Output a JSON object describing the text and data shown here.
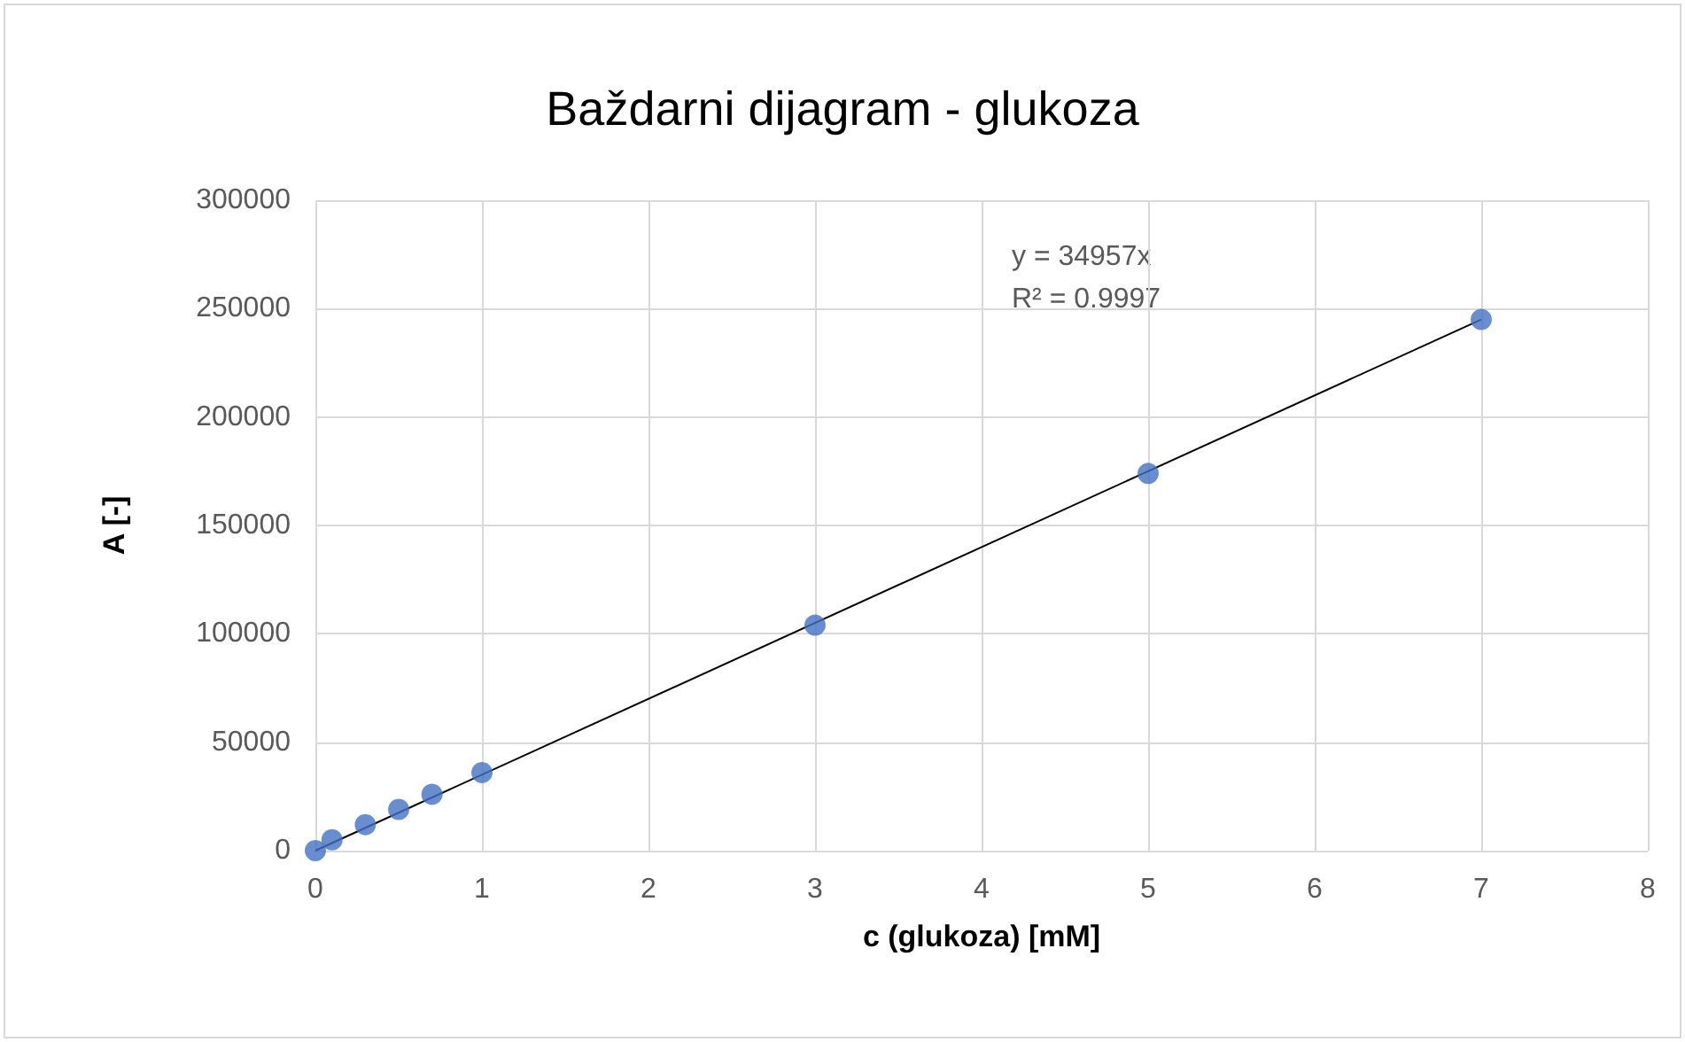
{
  "chart_data": {
    "type": "scatter",
    "title": "Baždarni dijagram - glukoza",
    "xlabel": "c (glukoza) [mM]",
    "ylabel": "A [-]",
    "x": [
      0,
      0.1,
      0.3,
      0.5,
      0.7,
      1,
      3,
      5,
      7
    ],
    "series": [
      {
        "color": "#4472c4",
        "values": [
          0,
          5000,
          12000,
          19000,
          26000,
          36000,
          104000,
          174000,
          245000
        ]
      },
      {
        "type": "line",
        "color": "#000000",
        "x": [
          0,
          7
        ],
        "values": [
          0,
          245000
        ],
        "marker": "none"
      }
    ],
    "annotations": [
      "y = 34957x",
      "R² = 0.9997"
    ],
    "xlim": [
      0,
      8
    ],
    "xticks": [
      0,
      1,
      2,
      3,
      4,
      5,
      6,
      7,
      8
    ],
    "ylim": [
      0,
      300000
    ],
    "yticks": [
      0,
      50000,
      100000,
      150000,
      200000,
      250000,
      300000
    ],
    "grid": true,
    "marker": "circle"
  }
}
